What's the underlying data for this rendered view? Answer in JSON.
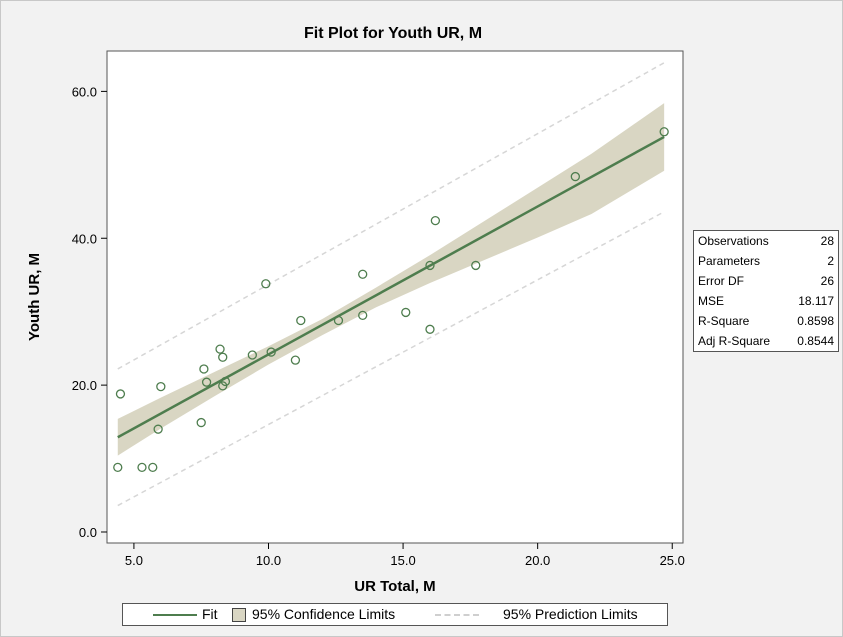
{
  "chart_data": {
    "type": "scatter",
    "title": "Fit Plot for Youth UR, M",
    "xlabel": "UR Total, M",
    "ylabel": "Youth UR, M",
    "xlim": [
      4.0,
      25.4
    ],
    "ylim": [
      -1.5,
      65.5
    ],
    "x_ticks": [
      5.0,
      10.0,
      15.0,
      20.0,
      25.0
    ],
    "y_ticks": [
      0.0,
      20.0,
      40.0,
      60.0
    ],
    "x_tick_labels": [
      "5.0",
      "10.0",
      "15.0",
      "20.0",
      "25.0"
    ],
    "y_tick_labels": [
      "0.0",
      "20.0",
      "40.0",
      "60.0"
    ],
    "grid": false,
    "series": [
      {
        "name": "Observations",
        "mode": "markers",
        "x": [
          4.4,
          4.5,
          5.3,
          5.7,
          5.9,
          6.0,
          7.5,
          7.6,
          7.7,
          8.2,
          8.3,
          8.3,
          8.4,
          9.4,
          9.9,
          10.1,
          11.0,
          11.2,
          12.6,
          13.5,
          13.5,
          15.1,
          16.0,
          16.0,
          16.2,
          17.7,
          21.4,
          24.7
        ],
        "y": [
          8.8,
          18.8,
          8.8,
          8.8,
          14.0,
          19.8,
          14.9,
          22.2,
          20.4,
          24.9,
          23.8,
          19.9,
          20.5,
          24.1,
          33.8,
          24.5,
          23.4,
          28.8,
          28.8,
          35.1,
          29.5,
          29.9,
          36.3,
          27.6,
          42.4,
          36.3,
          48.4,
          54.5
        ],
        "color": "#4e7d4e"
      },
      {
        "name": "Fit",
        "mode": "line",
        "x": [
          4.4,
          24.7
        ],
        "y": [
          12.9,
          53.8
        ],
        "color": "#4e7d4e"
      },
      {
        "name": "95% Confidence Limits",
        "mode": "band",
        "x": [
          4.4,
          6.0,
          8.0,
          10.0,
          12.0,
          14.0,
          16.0,
          18.0,
          20.0,
          22.0,
          24.7
        ],
        "lower": [
          10.4,
          14.1,
          18.5,
          22.8,
          26.8,
          30.6,
          33.9,
          37.0,
          40.1,
          43.3,
          49.2
        ],
        "upper": [
          15.4,
          18.3,
          21.8,
          25.3,
          29.0,
          33.3,
          37.7,
          42.3,
          46.9,
          51.5,
          58.4
        ],
        "color": "#d9d6c3"
      },
      {
        "name": "95% Prediction Limits",
        "mode": "dashed",
        "x": [
          4.4,
          24.7
        ],
        "lower": [
          3.6,
          43.6
        ],
        "upper": [
          22.2,
          63.9
        ],
        "color": "#d6d6d6"
      }
    ],
    "legend": {
      "position": "bottom",
      "items": [
        {
          "label": "Fit",
          "symbol": "line"
        },
        {
          "label": "95% Confidence Limits",
          "symbol": "box"
        },
        {
          "label": "95% Prediction Limits",
          "symbol": "dashed-line"
        }
      ]
    },
    "fit_statistics": [
      {
        "label": "Observations",
        "value": "28"
      },
      {
        "label": "Parameters",
        "value": "2"
      },
      {
        "label": "Error DF",
        "value": "26"
      },
      {
        "label": "MSE",
        "value": "18.117"
      },
      {
        "label": "R-Square",
        "value": "0.8598"
      },
      {
        "label": "Adj R-Square",
        "value": "0.8544"
      }
    ]
  }
}
